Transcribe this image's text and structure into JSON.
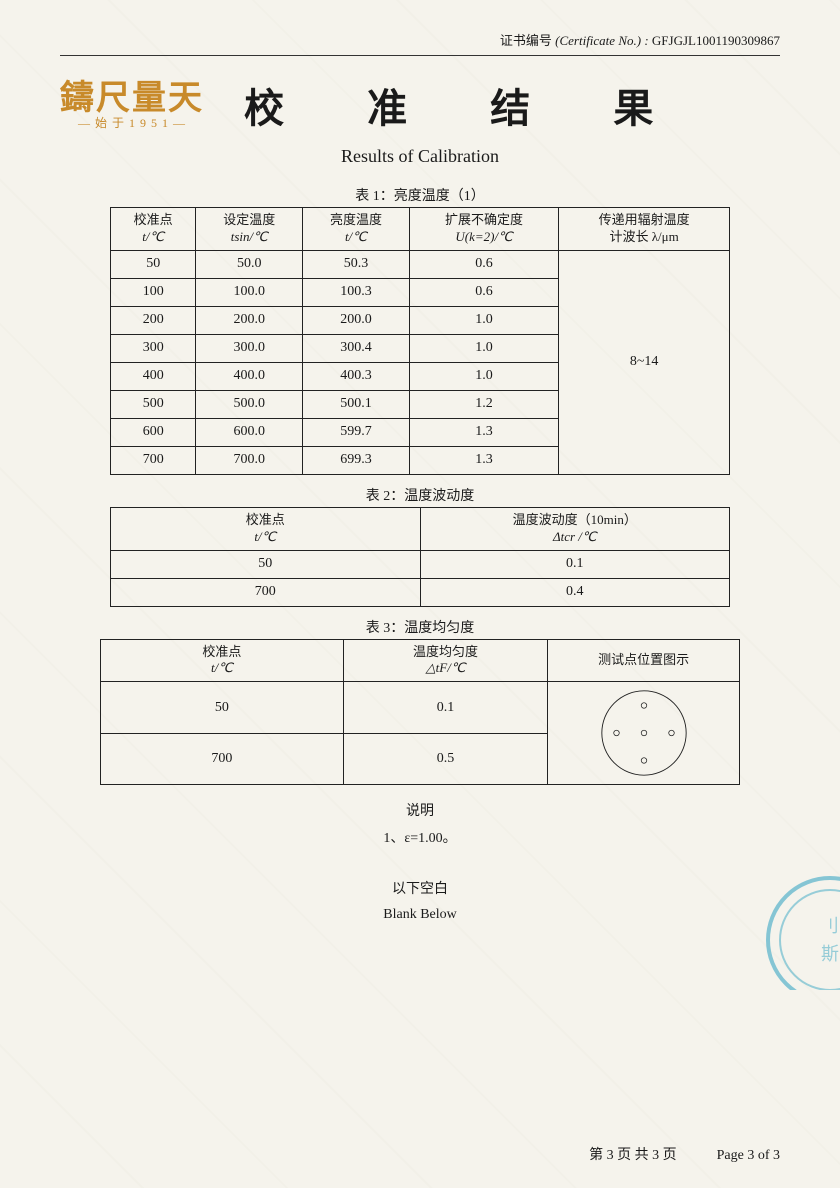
{
  "cert": {
    "label_cn": "证书编号",
    "label_en": "(Certificate No.) :",
    "number": "GFJGJL1001190309867"
  },
  "logo": {
    "main": "鑄尺量天",
    "sub": "— 始 于 1 9 5 1 —"
  },
  "title": {
    "cn": "校 准 结 果",
    "en": "Results of Calibration"
  },
  "table1": {
    "title": "表 1：亮度温度（1）",
    "headers": {
      "h1a": "校准点",
      "h1b": "t/℃",
      "h2a": "设定温度",
      "h2b": "tsin/℃",
      "h3a": "亮度温度",
      "h3b": "t/℃",
      "h4a": "扩展不确定度",
      "h4b": "U(k=2)/℃",
      "h5a": "传递用辐射温度",
      "h5b": "计波长 λ/μm"
    },
    "rows": [
      {
        "c1": "50",
        "c2": "50.0",
        "c3": "50.3",
        "c4": "0.6"
      },
      {
        "c1": "100",
        "c2": "100.0",
        "c3": "100.3",
        "c4": "0.6"
      },
      {
        "c1": "200",
        "c2": "200.0",
        "c3": "200.0",
        "c4": "1.0"
      },
      {
        "c1": "300",
        "c2": "300.0",
        "c3": "300.4",
        "c4": "1.0"
      },
      {
        "c1": "400",
        "c2": "400.0",
        "c3": "400.3",
        "c4": "1.0"
      },
      {
        "c1": "500",
        "c2": "500.0",
        "c3": "500.1",
        "c4": "1.2"
      },
      {
        "c1": "600",
        "c2": "600.0",
        "c3": "599.7",
        "c4": "1.3"
      },
      {
        "c1": "700",
        "c2": "700.0",
        "c3": "699.3",
        "c4": "1.3"
      }
    ],
    "merged_col5": "8~14"
  },
  "table2": {
    "title": "表 2：温度波动度",
    "headers": {
      "h1a": "校准点",
      "h1b": "t/℃",
      "h2a": "温度波动度（10min）",
      "h2b": "Δtcr /℃"
    },
    "rows": [
      {
        "c1": "50",
        "c2": "0.1"
      },
      {
        "c1": "700",
        "c2": "0.4"
      }
    ]
  },
  "table3": {
    "title": "表 3：温度均匀度",
    "headers": {
      "h1a": "校准点",
      "h1b": "t/℃",
      "h2a": "温度均匀度",
      "h2b": "△tF/℃",
      "h3": "测试点位置图示"
    },
    "rows": [
      {
        "c1": "50",
        "c2": "0.1"
      },
      {
        "c1": "700",
        "c2": "0.5"
      }
    ]
  },
  "note": {
    "title": "说明",
    "line1": "1、ε=1.00。"
  },
  "blank": {
    "cn": "以下空白",
    "en": "Blank Below"
  },
  "footer": {
    "cn": "第 3 页 共 3 页",
    "en": "Page 3 of 3"
  },
  "colors": {
    "bg": "#f5f3ec",
    "text": "#1a1a1a",
    "border": "#222",
    "logo": "#c88a2a",
    "stamp": "#3aa7c4"
  },
  "diagram": {
    "circle_r": 48,
    "dot_r": 3,
    "points": [
      [
        0,
        -30
      ],
      [
        0,
        0
      ],
      [
        -30,
        0
      ],
      [
        30,
        0
      ],
      [
        0,
        30
      ]
    ]
  }
}
